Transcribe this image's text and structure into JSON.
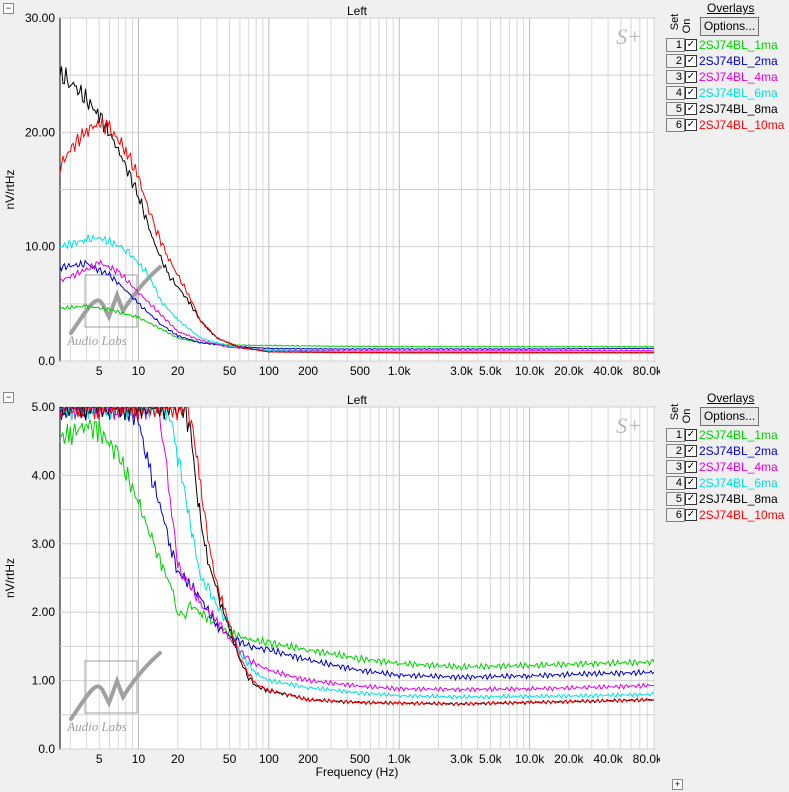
{
  "top": {
    "title": "Left",
    "ylabel": "nV/rtHz",
    "collapse": "−"
  },
  "bottom": {
    "title": "Left",
    "ylabel": "nV/rtHz",
    "xlabel": "Frequency (Hz)",
    "collapse": "−",
    "expand": "+"
  },
  "overlays": {
    "title": "Overlays",
    "set_label": "Set",
    "on_label": "On",
    "options_label": "Options...",
    "check": "✓",
    "items": [
      {
        "num": "1",
        "name": "2SJ74BL_1ma",
        "color": "#00d000"
      },
      {
        "num": "2",
        "name": "2SJ74BL_2ma",
        "color": "#0000cc"
      },
      {
        "num": "3",
        "name": "2SJ74BL_4ma",
        "color": "#e000e0"
      },
      {
        "num": "4",
        "name": "2SJ74BL_6ma",
        "color": "#00e0e0"
      },
      {
        "num": "5",
        "name": "2SJ74BL_8ma",
        "color": "#000000"
      },
      {
        "num": "6",
        "name": "2SJ74BL_10ma",
        "color": "#ff0000"
      }
    ]
  },
  "watermark": {
    "text": "Audio Labs",
    "sp_mark": "S+"
  },
  "chart_data": [
    {
      "type": "line",
      "title": "Left",
      "ylabel": "nV/rtHz",
      "xscale": "log",
      "xlim": [
        2.5,
        90000
      ],
      "ylim": [
        0,
        30
      ],
      "yticks": [
        "0.0",
        "10.00",
        "20.00",
        "30.00"
      ],
      "ytick_values": [
        0,
        10,
        20,
        30
      ],
      "xticks": [
        "5",
        "10",
        "20",
        "50",
        "100",
        "200",
        "500",
        "1.0k",
        "3.0k",
        "5.0k",
        "10.0k",
        "20.0k",
        "40.0k",
        "80.0k"
      ],
      "xtick_values": [
        5,
        10,
        20,
        50,
        100,
        200,
        500,
        1000,
        3000,
        5000,
        10000,
        20000,
        40000,
        80000
      ],
      "grid": true,
      "series": [
        {
          "name": "2SJ74BL_1ma",
          "color": "#00d000",
          "x": [
            2.5,
            4,
            6,
            10,
            15,
            20,
            30,
            50,
            100,
            300,
            1000,
            10000,
            90000
          ],
          "y": [
            4.6,
            4.8,
            4.5,
            3.8,
            2.8,
            2.0,
            1.6,
            1.4,
            1.35,
            1.3,
            1.25,
            1.25,
            1.25
          ]
        },
        {
          "name": "2SJ74BL_2ma",
          "color": "#0000cc",
          "x": [
            2.5,
            4,
            6,
            8,
            10,
            15,
            20,
            30,
            50,
            100,
            300,
            1000,
            10000,
            90000
          ],
          "y": [
            8.2,
            8.5,
            7.5,
            6.2,
            5.0,
            3.2,
            2.2,
            1.6,
            1.3,
            1.1,
            1.05,
            1.05,
            1.05,
            1.1
          ]
        },
        {
          "name": "2SJ74BL_4ma",
          "color": "#e000e0",
          "x": [
            2.5,
            4,
            5,
            7,
            10,
            15,
            20,
            30,
            50,
            100,
            300,
            1000,
            10000,
            90000
          ],
          "y": [
            7.0,
            8.0,
            8.6,
            7.8,
            6.0,
            4.0,
            2.6,
            1.8,
            1.2,
            0.95,
            0.9,
            0.88,
            0.9,
            0.9
          ]
        },
        {
          "name": "2SJ74BL_6ma",
          "color": "#00e0e0",
          "x": [
            2.5,
            4,
            5,
            8,
            12,
            15,
            20,
            30,
            50,
            100,
            300,
            1000,
            10000,
            90000
          ],
          "y": [
            10.0,
            10.6,
            10.8,
            9.8,
            7.5,
            5.2,
            3.6,
            2.0,
            1.3,
            0.9,
            0.85,
            0.8,
            0.8,
            0.8
          ]
        },
        {
          "name": "2SJ74BL_8ma",
          "color": "#000000",
          "x": [
            2.5,
            3,
            5,
            7,
            10,
            13,
            17,
            20,
            25,
            30,
            40,
            60,
            100,
            300,
            1000,
            10000,
            90000
          ],
          "y": [
            25.0,
            24.5,
            21.5,
            18.5,
            14.5,
            10.5,
            7.5,
            6.5,
            5.0,
            3.5,
            2.0,
            1.2,
            0.8,
            0.75,
            0.72,
            0.72,
            0.72
          ]
        },
        {
          "name": "2SJ74BL_10ma",
          "color": "#ff0000",
          "x": [
            2.5,
            3,
            4,
            5,
            6,
            8,
            10,
            13,
            17,
            20,
            25,
            30,
            40,
            60,
            100,
            300,
            1000,
            10000,
            90000
          ],
          "y": [
            17.0,
            18.5,
            20.2,
            20.8,
            20.3,
            18.5,
            16.0,
            12.0,
            9.0,
            7.5,
            5.5,
            3.5,
            2.0,
            1.2,
            0.8,
            0.75,
            0.72,
            0.72,
            0.72
          ]
        }
      ]
    },
    {
      "type": "line",
      "title": "Left",
      "xlabel": "Frequency (Hz)",
      "ylabel": "nV/rtHz",
      "xscale": "log",
      "xlim": [
        2.5,
        90000
      ],
      "ylim": [
        0,
        5
      ],
      "yticks": [
        "0.0",
        "1.00",
        "2.00",
        "3.00",
        "4.00",
        "5.00"
      ],
      "ytick_values": [
        0,
        1,
        2,
        3,
        4,
        5
      ],
      "xticks": [
        "5",
        "10",
        "20",
        "50",
        "100",
        "200",
        "500",
        "1.0k",
        "3.0k",
        "5.0k",
        "10.0k",
        "20.0k",
        "40.0k",
        "80.0k"
      ],
      "xtick_values": [
        5,
        10,
        20,
        50,
        100,
        200,
        500,
        1000,
        3000,
        5000,
        10000,
        20000,
        40000,
        80000
      ],
      "grid": true,
      "series": [
        {
          "name": "2SJ74BL_1ma",
          "color": "#00d000",
          "x": [
            2.5,
            3,
            4,
            5,
            7,
            10,
            13,
            15,
            18,
            20,
            23,
            25,
            30,
            40,
            50,
            70,
            100,
            200,
            500,
            1000,
            3000,
            10000,
            30000,
            90000
          ],
          "y": [
            4.55,
            4.6,
            4.75,
            4.65,
            4.3,
            3.6,
            3.0,
            2.7,
            2.35,
            2.0,
            1.95,
            2.1,
            2.0,
            1.8,
            1.7,
            1.6,
            1.55,
            1.45,
            1.32,
            1.25,
            1.2,
            1.22,
            1.25,
            1.27
          ]
        },
        {
          "name": "2SJ74BL_2ma",
          "color": "#0000cc",
          "x": [
            2.5,
            5,
            8,
            10,
            12,
            15,
            18,
            20,
            25,
            30,
            40,
            50,
            70,
            100,
            200,
            500,
            1000,
            3000,
            10000,
            30000,
            90000
          ],
          "y": [
            5.0,
            5.0,
            5.0,
            4.8,
            4.1,
            3.5,
            2.9,
            2.6,
            2.4,
            2.2,
            1.8,
            1.65,
            1.5,
            1.45,
            1.3,
            1.15,
            1.08,
            1.05,
            1.07,
            1.1,
            1.12
          ]
        },
        {
          "name": "2SJ74BL_4ma",
          "color": "#e000e0",
          "x": [
            2.5,
            10,
            14,
            16,
            18,
            20,
            22,
            25,
            30,
            40,
            50,
            70,
            100,
            200,
            500,
            1000,
            3000,
            10000,
            30000,
            90000
          ],
          "y": [
            5.0,
            5.0,
            5.0,
            4.3,
            3.5,
            2.7,
            2.55,
            2.4,
            2.1,
            1.9,
            1.6,
            1.3,
            1.15,
            1.0,
            0.92,
            0.88,
            0.87,
            0.88,
            0.9,
            0.93
          ]
        },
        {
          "name": "2SJ74BL_6ma",
          "color": "#00e0e0",
          "x": [
            2.5,
            15,
            18,
            20,
            22,
            25,
            30,
            35,
            40,
            50,
            60,
            80,
            100,
            200,
            500,
            1000,
            3000,
            10000,
            30000,
            90000
          ],
          "y": [
            5.0,
            5.0,
            4.8,
            4.3,
            3.9,
            3.3,
            2.5,
            2.3,
            2.1,
            1.8,
            1.4,
            1.1,
            1.0,
            0.9,
            0.82,
            0.78,
            0.76,
            0.77,
            0.78,
            0.8
          ]
        },
        {
          "name": "2SJ74BL_8ma",
          "color": "#000000",
          "x": [
            2.5,
            20,
            22,
            25,
            28,
            30,
            33,
            36,
            40,
            45,
            50,
            60,
            70,
            80,
            100,
            150,
            200,
            500,
            1000,
            3000,
            10000,
            30000,
            90000
          ],
          "y": [
            5.0,
            5.0,
            5.0,
            4.7,
            3.8,
            3.3,
            2.9,
            2.6,
            2.3,
            2.0,
            1.75,
            1.3,
            1.05,
            0.92,
            0.85,
            0.78,
            0.72,
            0.68,
            0.67,
            0.66,
            0.68,
            0.7,
            0.72
          ]
        },
        {
          "name": "2SJ74BL_10ma",
          "color": "#ff0000",
          "x": [
            2.5,
            22,
            24,
            27,
            30,
            33,
            36,
            40,
            45,
            50,
            60,
            70,
            80,
            100,
            150,
            200,
            500,
            1000,
            3000,
            10000,
            30000,
            90000
          ],
          "y": [
            5.0,
            5.0,
            5.0,
            4.5,
            3.8,
            3.3,
            2.8,
            2.4,
            2.1,
            1.8,
            1.35,
            1.1,
            0.95,
            0.86,
            0.78,
            0.72,
            0.68,
            0.67,
            0.66,
            0.68,
            0.7,
            0.72
          ]
        }
      ]
    }
  ]
}
